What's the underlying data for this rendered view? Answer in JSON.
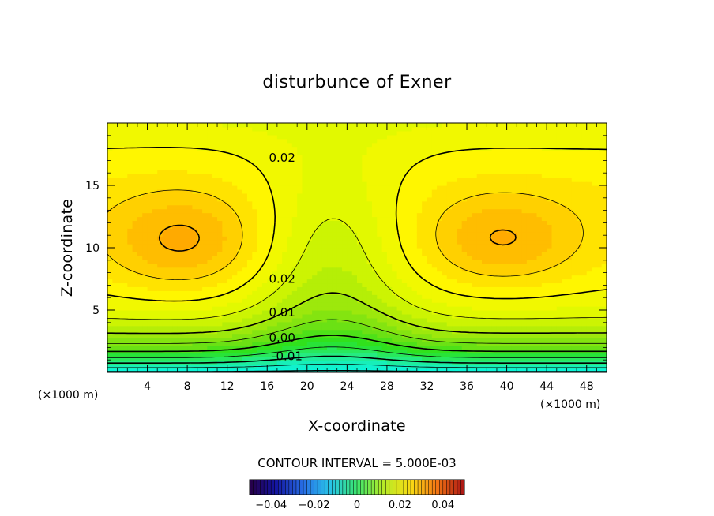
{
  "chart_data": {
    "type": "heatmap",
    "title": "disturbunce of Exner",
    "xlabel": "X-coordinate",
    "ylabel": "Z-coordinate",
    "x_unit": "(×1000 m)",
    "xlim": [
      0,
      50
    ],
    "ylim": [
      0,
      20
    ],
    "x_ticks": [
      "4",
      "8",
      "12",
      "16",
      "20",
      "24",
      "28",
      "32",
      "36",
      "40",
      "44",
      "48"
    ],
    "y_ticks": [
      "5",
      "10",
      "15"
    ],
    "contour_interval_text": "CONTOUR INTERVAL = 5.000E-03",
    "contour_interval": 0.005,
    "contour_labels": [
      {
        "text": "0.02",
        "x": 17.5,
        "z": 17.2
      },
      {
        "text": "0.02",
        "x": 17.5,
        "z": 7.5
      },
      {
        "text": "0.01",
        "x": 17.5,
        "z": 4.8
      },
      {
        "text": "0.00",
        "x": 17.5,
        "z": 2.8
      },
      {
        "text": "-0.01",
        "x": 18.0,
        "z": 1.3
      }
    ],
    "colorbar": {
      "range": [
        -0.05,
        0.05
      ],
      "tick_labels": [
        "-0.04",
        "-0.02",
        "0",
        "0.02",
        "0.04"
      ],
      "tick_values": [
        -0.04,
        -0.02,
        0,
        0.02,
        0.04
      ]
    },
    "grid": false,
    "legend": "none",
    "field_description": "Exner pressure disturbance; maxima ~0.03 near (x=8, z=10.5) and (x=39, z=10.5); saddle at x~22.5; minimum ~-0.02 at bottom near x~23"
  }
}
